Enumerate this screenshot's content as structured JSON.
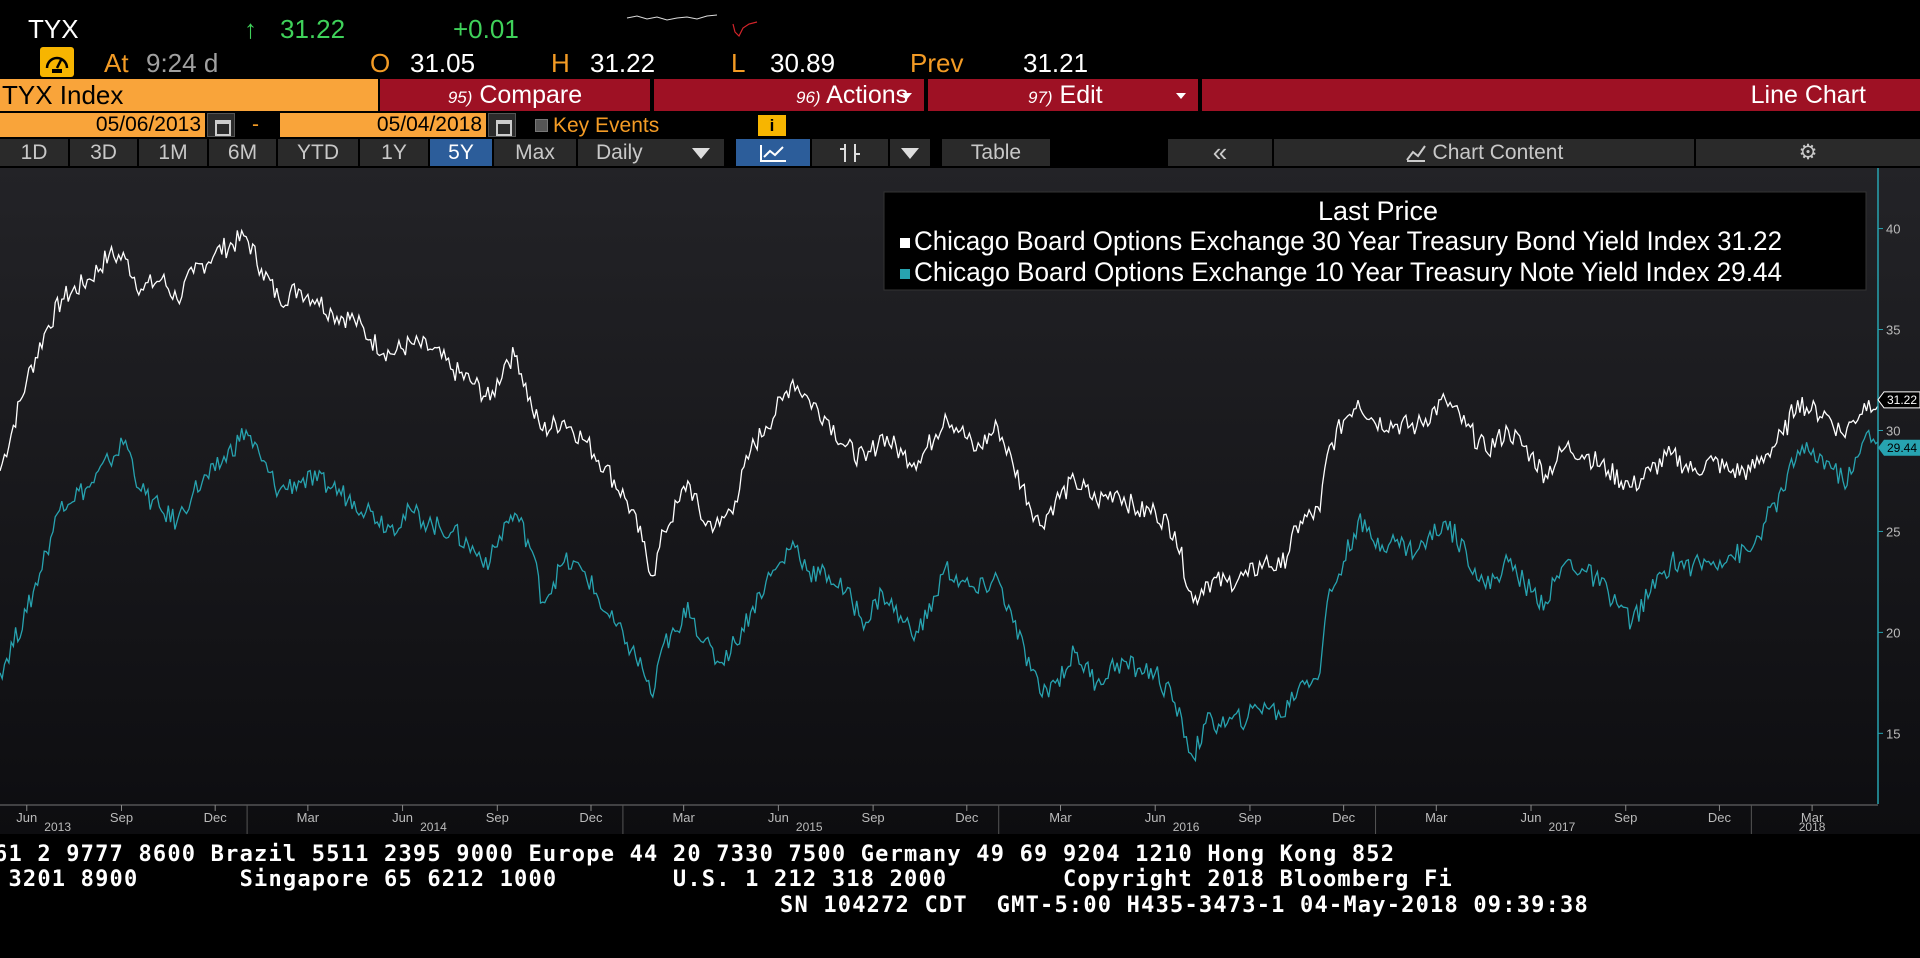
{
  "quote": {
    "ticker": "TYX",
    "arrow": "↑",
    "last": "31.22",
    "change": "+0.01",
    "at_label": "At",
    "at_time": "9:24 d",
    "open_label": "O",
    "open": "31.05",
    "high_label": "H",
    "high": "31.22",
    "low_label": "L",
    "low": "30.89",
    "prev_label": "Prev",
    "prev": "31.21",
    "gauge_icon": "gauge-icon",
    "colors": {
      "up": "#3fd15a",
      "label": "#f39b25"
    }
  },
  "toolbar": {
    "security": "TYX Index",
    "compare_num": "95)",
    "compare": "Compare",
    "actions_num": "96)",
    "actions": "Actions",
    "edit_num": "97)",
    "edit": "Edit",
    "chart_type": "Line Chart"
  },
  "range": {
    "start": "05/06/2013",
    "dash": "-",
    "end": "05/04/2018",
    "key_events": "Key Events",
    "info": "i"
  },
  "periods": {
    "items": [
      "1D",
      "3D",
      "1M",
      "6M",
      "YTD",
      "1Y",
      "5Y",
      "Max"
    ],
    "active": "5Y",
    "frequency": "Daily",
    "table": "Table",
    "collapse": "«",
    "chart_content": "Chart Content",
    "settings_icon": "gear-icon"
  },
  "chart_data": {
    "type": "line",
    "legend_title": "Last Price",
    "legend_position": "top-right",
    "ylim": [
      11.5,
      43
    ],
    "yticks": [
      15,
      20,
      25,
      30,
      35,
      40
    ],
    "x_range": [
      "2013-05-06",
      "2018-05-04"
    ],
    "month_ticks": [
      {
        "label": "Jun",
        "date": "2013-06-01"
      },
      {
        "label": "Sep",
        "date": "2013-09-01"
      },
      {
        "label": "Dec",
        "date": "2013-12-01"
      },
      {
        "label": "Mar",
        "date": "2014-03-01"
      },
      {
        "label": "Jun",
        "date": "2014-06-01"
      },
      {
        "label": "Sep",
        "date": "2014-09-01"
      },
      {
        "label": "Dec",
        "date": "2014-12-01"
      },
      {
        "label": "Mar",
        "date": "2015-03-01"
      },
      {
        "label": "Jun",
        "date": "2015-06-01"
      },
      {
        "label": "Sep",
        "date": "2015-09-01"
      },
      {
        "label": "Dec",
        "date": "2015-12-01"
      },
      {
        "label": "Mar",
        "date": "2016-03-01"
      },
      {
        "label": "Jun",
        "date": "2016-06-01"
      },
      {
        "label": "Sep",
        "date": "2016-09-01"
      },
      {
        "label": "Dec",
        "date": "2016-12-01"
      },
      {
        "label": "Mar",
        "date": "2017-03-01"
      },
      {
        "label": "Jun",
        "date": "2017-06-01"
      },
      {
        "label": "Sep",
        "date": "2017-09-01"
      },
      {
        "label": "Dec",
        "date": "2017-12-01"
      },
      {
        "label": "Mar",
        "date": "2018-03-01"
      }
    ],
    "year_ticks": [
      {
        "label": "2013",
        "date": "2013-07-01"
      },
      {
        "label": "2014",
        "date": "2014-07-01"
      },
      {
        "label": "2015",
        "date": "2015-07-01"
      },
      {
        "label": "2016",
        "date": "2016-07-01"
      },
      {
        "label": "2017",
        "date": "2017-07-01"
      },
      {
        "label": "2018",
        "date": "2018-03-01"
      }
    ],
    "series": [
      {
        "name": "Chicago Board Options Exchange 30 Year Treasury Bond Yield Index",
        "last": "31.22",
        "color": "#ffffff",
        "points": [
          [
            "2013-05-06",
            28.0
          ],
          [
            "2013-06-01",
            32.5
          ],
          [
            "2013-06-20",
            35.0
          ],
          [
            "2013-07-05",
            36.5
          ],
          [
            "2013-08-01",
            37.5
          ],
          [
            "2013-08-20",
            38.7
          ],
          [
            "2013-09-05",
            38.5
          ],
          [
            "2013-09-20",
            37.0
          ],
          [
            "2013-10-10",
            37.5
          ],
          [
            "2013-10-25",
            36.5
          ],
          [
            "2013-11-10",
            37.8
          ],
          [
            "2013-12-01",
            38.8
          ],
          [
            "2013-12-31",
            39.6
          ],
          [
            "2014-01-15",
            38.0
          ],
          [
            "2014-02-01",
            36.5
          ],
          [
            "2014-02-20",
            37.0
          ],
          [
            "2014-03-10",
            36.5
          ],
          [
            "2014-03-25",
            35.8
          ],
          [
            "2014-04-15",
            35.5
          ],
          [
            "2014-05-01",
            34.5
          ],
          [
            "2014-05-20",
            33.8
          ],
          [
            "2014-06-10",
            34.3
          ],
          [
            "2014-06-30",
            34.0
          ],
          [
            "2014-07-20",
            33.0
          ],
          [
            "2014-08-10",
            32.3
          ],
          [
            "2014-08-25",
            31.5
          ],
          [
            "2014-09-10",
            33.5
          ],
          [
            "2014-09-20",
            33.7
          ],
          [
            "2014-10-05",
            31.0
          ],
          [
            "2014-10-15",
            30.0
          ],
          [
            "2014-11-05",
            30.5
          ],
          [
            "2014-11-25",
            29.5
          ],
          [
            "2014-12-15",
            28.2
          ],
          [
            "2015-01-05",
            26.5
          ],
          [
            "2015-01-20",
            24.5
          ],
          [
            "2015-01-30",
            22.8
          ],
          [
            "2015-02-10",
            25.0
          ],
          [
            "2015-02-25",
            26.5
          ],
          [
            "2015-03-05",
            27.5
          ],
          [
            "2015-03-20",
            25.5
          ],
          [
            "2015-04-05",
            25.3
          ],
          [
            "2015-04-20",
            26.5
          ],
          [
            "2015-05-05",
            29.0
          ],
          [
            "2015-05-20",
            30.2
          ],
          [
            "2015-06-05",
            31.5
          ],
          [
            "2015-06-15",
            32.5
          ],
          [
            "2015-07-01",
            31.5
          ],
          [
            "2015-07-20",
            30.5
          ],
          [
            "2015-08-05",
            29.2
          ],
          [
            "2015-08-25",
            28.5
          ],
          [
            "2015-09-10",
            29.8
          ],
          [
            "2015-09-30",
            28.8
          ],
          [
            "2015-10-15",
            28.5
          ],
          [
            "2015-11-01",
            29.8
          ],
          [
            "2015-11-10",
            30.8
          ],
          [
            "2015-11-25",
            30.0
          ],
          [
            "2015-12-10",
            29.0
          ],
          [
            "2015-12-31",
            30.2
          ],
          [
            "2016-01-15",
            28.3
          ],
          [
            "2016-02-10",
            25.3
          ],
          [
            "2016-02-25",
            26.5
          ],
          [
            "2016-03-15",
            27.5
          ],
          [
            "2016-04-05",
            26.5
          ],
          [
            "2016-04-25",
            27.0
          ],
          [
            "2016-05-15",
            26.0
          ],
          [
            "2016-06-01",
            26.0
          ],
          [
            "2016-06-20",
            25.0
          ],
          [
            "2016-07-08",
            21.5
          ],
          [
            "2016-07-20",
            22.5
          ],
          [
            "2016-08-10",
            22.5
          ],
          [
            "2016-08-30",
            22.8
          ],
          [
            "2016-09-15",
            23.5
          ],
          [
            "2016-10-01",
            23.2
          ],
          [
            "2016-10-20",
            25.5
          ],
          [
            "2016-11-08",
            26.0
          ],
          [
            "2016-11-15",
            28.8
          ],
          [
            "2016-12-01",
            30.5
          ],
          [
            "2016-12-15",
            31.5
          ],
          [
            "2016-12-30",
            30.5
          ],
          [
            "2017-01-20",
            30.3
          ],
          [
            "2017-02-10",
            30.2
          ],
          [
            "2017-03-10",
            31.5
          ],
          [
            "2017-03-30",
            30.2
          ],
          [
            "2017-04-18",
            29.0
          ],
          [
            "2017-05-10",
            30.0
          ],
          [
            "2017-06-01",
            28.8
          ],
          [
            "2017-06-15",
            27.8
          ],
          [
            "2017-07-05",
            29.2
          ],
          [
            "2017-07-25",
            28.8
          ],
          [
            "2017-08-15",
            28.0
          ],
          [
            "2017-09-07",
            27.2
          ],
          [
            "2017-09-25",
            28.0
          ],
          [
            "2017-10-15",
            28.8
          ],
          [
            "2017-11-05",
            28.0
          ],
          [
            "2017-11-25",
            28.5
          ],
          [
            "2017-12-10",
            28.0
          ],
          [
            "2017-12-31",
            28.0
          ],
          [
            "2018-01-15",
            28.8
          ],
          [
            "2018-02-01",
            29.8
          ],
          [
            "2018-02-15",
            31.5
          ],
          [
            "2018-02-28",
            31.0
          ],
          [
            "2018-03-15",
            30.8
          ],
          [
            "2018-03-31",
            29.8
          ],
          [
            "2018-04-10",
            30.5
          ],
          [
            "2018-04-25",
            31.5
          ],
          [
            "2018-05-04",
            31.22
          ]
        ]
      },
      {
        "name": "Chicago Board Options Exchange 10 Year Treasury Note Yield Index",
        "last": "29.44",
        "color": "#27a3b0",
        "points": [
          [
            "2013-05-06",
            18.0
          ],
          [
            "2013-06-01",
            21.0
          ],
          [
            "2013-06-20",
            24.0
          ],
          [
            "2013-07-05",
            26.5
          ],
          [
            "2013-08-01",
            27.2
          ],
          [
            "2013-08-20",
            28.5
          ],
          [
            "2013-09-05",
            29.5
          ],
          [
            "2013-09-20",
            27.0
          ],
          [
            "2013-10-10",
            26.0
          ],
          [
            "2013-10-25",
            25.5
          ],
          [
            "2013-11-10",
            27.0
          ],
          [
            "2013-12-01",
            28.0
          ],
          [
            "2013-12-31",
            30.0
          ],
          [
            "2014-01-15",
            28.5
          ],
          [
            "2014-02-01",
            27.0
          ],
          [
            "2014-02-20",
            27.5
          ],
          [
            "2014-03-10",
            27.5
          ],
          [
            "2014-03-25",
            27.2
          ],
          [
            "2014-04-15",
            26.5
          ],
          [
            "2014-05-01",
            26.0
          ],
          [
            "2014-05-20",
            25.2
          ],
          [
            "2014-06-10",
            26.0
          ],
          [
            "2014-06-30",
            25.3
          ],
          [
            "2014-07-20",
            25.0
          ],
          [
            "2014-08-10",
            24.0
          ],
          [
            "2014-08-25",
            23.5
          ],
          [
            "2014-09-10",
            25.5
          ],
          [
            "2014-09-20",
            25.8
          ],
          [
            "2014-10-05",
            24.0
          ],
          [
            "2014-10-15",
            21.5
          ],
          [
            "2014-11-05",
            23.5
          ],
          [
            "2014-11-25",
            23.0
          ],
          [
            "2014-12-15",
            21.0
          ],
          [
            "2015-01-05",
            19.5
          ],
          [
            "2015-01-20",
            18.2
          ],
          [
            "2015-01-30",
            16.8
          ],
          [
            "2015-02-10",
            19.5
          ],
          [
            "2015-02-25",
            20.0
          ],
          [
            "2015-03-05",
            21.5
          ],
          [
            "2015-03-20",
            19.5
          ],
          [
            "2015-04-05",
            18.5
          ],
          [
            "2015-04-20",
            19.5
          ],
          [
            "2015-05-05",
            21.0
          ],
          [
            "2015-05-20",
            22.5
          ],
          [
            "2015-06-05",
            23.5
          ],
          [
            "2015-06-15",
            24.5
          ],
          [
            "2015-07-01",
            23.0
          ],
          [
            "2015-07-20",
            22.8
          ],
          [
            "2015-08-05",
            22.0
          ],
          [
            "2015-08-25",
            20.5
          ],
          [
            "2015-09-10",
            22.0
          ],
          [
            "2015-09-30",
            20.5
          ],
          [
            "2015-10-15",
            20.0
          ],
          [
            "2015-11-01",
            21.8
          ],
          [
            "2015-11-10",
            23.2
          ],
          [
            "2015-11-25",
            22.5
          ],
          [
            "2015-12-10",
            22.0
          ],
          [
            "2015-12-31",
            22.7
          ],
          [
            "2016-01-15",
            20.5
          ],
          [
            "2016-02-10",
            17.0
          ],
          [
            "2016-02-25",
            17.5
          ],
          [
            "2016-03-15",
            19.0
          ],
          [
            "2016-04-05",
            17.5
          ],
          [
            "2016-04-25",
            18.5
          ],
          [
            "2016-05-15",
            18.2
          ],
          [
            "2016-06-01",
            18.0
          ],
          [
            "2016-06-20",
            16.5
          ],
          [
            "2016-07-08",
            13.8
          ],
          [
            "2016-07-20",
            15.5
          ],
          [
            "2016-08-10",
            15.5
          ],
          [
            "2016-08-30",
            15.8
          ],
          [
            "2016-09-15",
            16.5
          ],
          [
            "2016-10-01",
            15.8
          ],
          [
            "2016-10-20",
            17.5
          ],
          [
            "2016-11-08",
            18.0
          ],
          [
            "2016-11-15",
            21.5
          ],
          [
            "2016-12-01",
            23.5
          ],
          [
            "2016-12-15",
            25.5
          ],
          [
            "2016-12-30",
            24.5
          ],
          [
            "2017-01-20",
            24.5
          ],
          [
            "2017-02-10",
            24.0
          ],
          [
            "2017-03-10",
            25.5
          ],
          [
            "2017-03-30",
            24.0
          ],
          [
            "2017-04-18",
            22.2
          ],
          [
            "2017-05-10",
            23.5
          ],
          [
            "2017-06-01",
            22.0
          ],
          [
            "2017-06-15",
            21.5
          ],
          [
            "2017-07-05",
            23.5
          ],
          [
            "2017-07-25",
            23.0
          ],
          [
            "2017-08-15",
            22.0
          ],
          [
            "2017-09-07",
            20.5
          ],
          [
            "2017-09-25",
            22.0
          ],
          [
            "2017-10-15",
            23.5
          ],
          [
            "2017-11-05",
            23.3
          ],
          [
            "2017-11-25",
            23.5
          ],
          [
            "2017-12-10",
            23.8
          ],
          [
            "2017-12-31",
            24.0
          ],
          [
            "2018-01-15",
            25.5
          ],
          [
            "2018-02-01",
            27.0
          ],
          [
            "2018-02-15",
            29.0
          ],
          [
            "2018-02-28",
            28.8
          ],
          [
            "2018-03-15",
            28.5
          ],
          [
            "2018-03-31",
            27.5
          ],
          [
            "2018-04-10",
            28.0
          ],
          [
            "2018-04-25",
            30.0
          ],
          [
            "2018-05-04",
            29.44
          ]
        ]
      }
    ]
  },
  "footer": {
    "line1": "61 2 9777 8600 Brazil 5511 2395 9000 Europe 44 20 7330 7500 Germany 49 69 9204 1210 Hong Kong 852",
    "line2": " 3201 8900       Singapore 65 6212 1000        U.S. 1 212 318 2000        Copyright 2018 Bloomberg Fi",
    "line3": "SN 104272 CDT  GMT-5:00 H435-3473-1 04-May-2018 09:39:38"
  }
}
